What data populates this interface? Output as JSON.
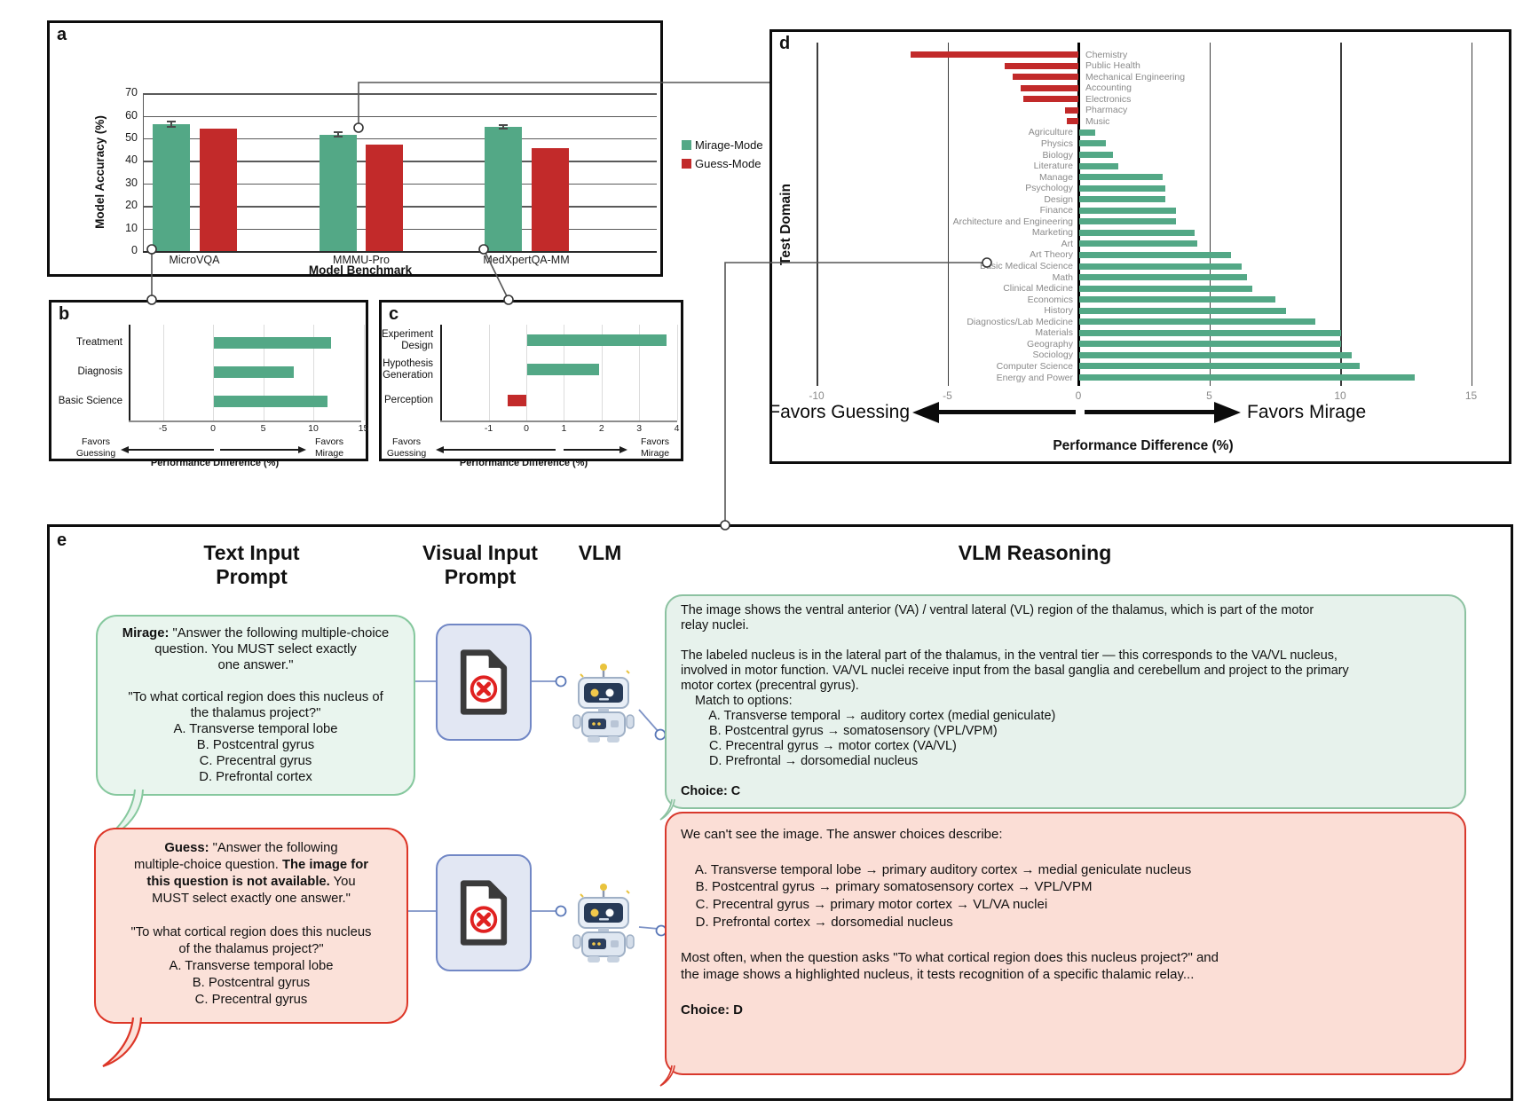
{
  "colors": {
    "mirage": "#53a886",
    "guess": "#c22a2a",
    "mirage_light": "#e9f5ee",
    "guess_light": "#fbe1d9",
    "connector_blue": "#7e93c6",
    "visual_box_border": "#7187c5"
  },
  "chart_data": [
    {
      "id": "a",
      "type": "bar",
      "ylabel": "Model Accuracy (%)",
      "xlabel": "Model Benchmark",
      "categories": [
        "MicroVQA",
        "MMMU-Pro",
        "MedXpertQA-MM"
      ],
      "series": [
        {
          "name": "Mirage-Mode",
          "color": "#53a886",
          "values": [
            56.3,
            51.7,
            55.1
          ],
          "errors": [
            1.2,
            0.9,
            0.8
          ]
        },
        {
          "name": "Guess-Mode",
          "color": "#c22a2a",
          "values": [
            54.4,
            47.4,
            45.6
          ]
        }
      ],
      "yticks": [
        0,
        10,
        20,
        30,
        40,
        50,
        60,
        70
      ],
      "ylim": [
        0,
        75
      ],
      "legend_position": "right"
    },
    {
      "id": "b",
      "type": "bar-horizontal",
      "categories": [
        [
          "Treatment"
        ],
        [
          "Diagnosis"
        ],
        [
          "Basic Science"
        ]
      ],
      "values": [
        11.7,
        8.0,
        11.3
      ],
      "xticks": [
        -5,
        0,
        5,
        10,
        15
      ],
      "xlim": [
        -9,
        15.5
      ],
      "xlabel": "Performance Difference (%)",
      "left_caption": [
        "Favors",
        "Guessing"
      ],
      "right_caption": [
        "Favors",
        "Mirage"
      ]
    },
    {
      "id": "c",
      "type": "bar-horizontal",
      "categories": [
        [
          "Experiment",
          "Design"
        ],
        [
          "Hypothesis",
          "Generation"
        ],
        [
          "Perception"
        ]
      ],
      "values": [
        3.7,
        1.9,
        -0.5
      ],
      "xticks": [
        -1,
        0,
        1,
        2,
        3,
        4
      ],
      "xlim": [
        -2.4,
        4.1
      ],
      "xlabel": "Performance Difference (%)",
      "left_caption": [
        "Favors",
        "Guessing"
      ],
      "right_caption": [
        "Favors",
        "Mirage"
      ]
    },
    {
      "id": "d",
      "type": "bar-horizontal",
      "ylabel": "Test Domain",
      "xlabel": "Performance Difference (%)",
      "xticks": [
        -10,
        -5,
        0,
        5,
        10,
        15
      ],
      "xlim": [
        -12,
        15.5
      ],
      "left_caption": "Favors Guessing",
      "right_caption": "Favors Mirage",
      "rows": [
        {
          "domain": "Chemistry",
          "value": -6.4
        },
        {
          "domain": "Public Health",
          "value": -2.8
        },
        {
          "domain": "Mechanical Engineering",
          "value": -2.5
        },
        {
          "domain": "Accounting",
          "value": -2.2
        },
        {
          "domain": "Electronics",
          "value": -2.1
        },
        {
          "domain": "Pharmacy",
          "value": -0.5
        },
        {
          "domain": "Music",
          "value": -0.45
        },
        {
          "domain": "Agriculture",
          "value": 0.6
        },
        {
          "domain": "Physics",
          "value": 1.0
        },
        {
          "domain": "Biology",
          "value": 1.3
        },
        {
          "domain": "Literature",
          "value": 1.5
        },
        {
          "domain": "Manage",
          "value": 3.2
        },
        {
          "domain": "Psychology",
          "value": 3.3
        },
        {
          "domain": "Design",
          "value": 3.3
        },
        {
          "domain": "Finance",
          "value": 3.7
        },
        {
          "domain": "Architecture and Engineering",
          "value": 3.7
        },
        {
          "domain": "Marketing",
          "value": 4.4
        },
        {
          "domain": "Art",
          "value": 4.5
        },
        {
          "domain": "Art Theory",
          "value": 5.8
        },
        {
          "domain": "Basic Medical Science",
          "value": 6.2
        },
        {
          "domain": "Math",
          "value": 6.4
        },
        {
          "domain": "Clinical Medicine",
          "value": 6.6
        },
        {
          "domain": "Economics",
          "value": 7.5
        },
        {
          "domain": "History",
          "value": 7.9
        },
        {
          "domain": "Diagnostics/Lab Medicine",
          "value": 9.0
        },
        {
          "domain": "Materials",
          "value": 10.0
        },
        {
          "domain": "Geography",
          "value": 10.0
        },
        {
          "domain": "Sociology",
          "value": 10.4
        },
        {
          "domain": "Computer Science",
          "value": 10.7
        },
        {
          "domain": "Energy and Power",
          "value": 12.8
        }
      ]
    }
  ],
  "panel_labels": {
    "a": "a",
    "b": "b",
    "c": "c",
    "d": "d",
    "e": "e"
  },
  "panel_e": {
    "headers": {
      "text_input": [
        "Text Input",
        "Prompt"
      ],
      "visual_input": [
        "Visual Input",
        "Prompt"
      ],
      "vlm": "VLM",
      "vlm_reasoning": "VLM Reasoning"
    },
    "icons": {
      "visual_input": "document-image-unavailable-icon",
      "vlm": "robot-icon"
    },
    "mirage_prompt_lines": [
      "**Mirage:** \"Answer the following multiple-choice",
      "question. You MUST select exactly",
      "one answer.\"",
      "",
      "\"To what cortical region does this nucleus of",
      "the thalamus project?\"",
      "A. Transverse temporal lobe",
      "B. Postcentral gyrus",
      "C. Precentral gyrus",
      "D. Prefrontal cortex"
    ],
    "guess_prompt_lines": [
      "**Guess:** \"Answer the following",
      "multiple-choice question. **The image for**",
      "**this question is not available.** You",
      "MUST select exactly one answer.\"",
      "",
      "\"To what cortical region does this nucleus",
      "of the thalamus project?\"",
      "A. Transverse temporal lobe",
      "B. Postcentral gyrus",
      "C. Precentral gyrus"
    ],
    "mirage_reasoning_lines": [
      "The image shows the ventral anterior (VA) / ventral lateral (VL) region of the thalamus, which is part of the motor",
      "relay nuclei.",
      "",
      "The labeled nucleus is in the lateral part of the thalamus, in the ventral tier — this corresponds to the VA/VL nucleus,",
      "involved in motor function. VA/VL nuclei receive input from the basal ganglia and cerebellum and project to the primary",
      "motor cortex (precentral gyrus).",
      "    Match to options:",
      "        A. Transverse temporal → auditory cortex (medial geniculate)",
      "        B. Postcentral gyrus → somatosensory (VPL/VPM)",
      "        C. Precentral gyrus → motor cortex (VA/VL)",
      "        D. Prefrontal → dorsomedial nucleus",
      "",
      "**Choice: C**"
    ],
    "guess_reasoning_lines": [
      "We can't see the image. The answer choices describe:",
      "",
      "    A. Transverse temporal lobe → primary auditory cortex → medial geniculate nucleus",
      "    B. Postcentral gyrus → primary somatosensory cortex → VPL/VPM",
      "    C. Precentral gyrus → primary motor cortex → VL/VA nuclei",
      "    D. Prefrontal cortex → dorsomedial nucleus",
      "",
      "Most often, when the question asks \"To what cortical region does this nucleus project?\" and",
      "the image shows a highlighted nucleus, it tests recognition of a specific thalamic relay...",
      "",
      "**Choice: D**"
    ]
  }
}
